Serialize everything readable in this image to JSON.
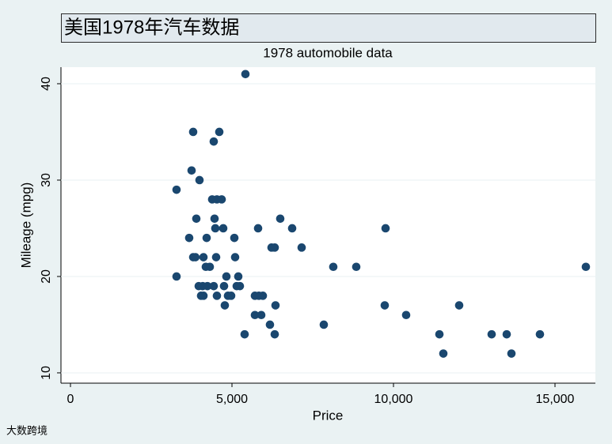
{
  "header": {
    "title": "美国1978年汽车数据"
  },
  "watermark": "大数跨境",
  "chart_data": {
    "type": "scatter",
    "title": "1978 automobile data",
    "x_label": "Price",
    "y_label": "Mileage (mpg)",
    "color": "#1a476f",
    "grid": true,
    "xlim": [
      -294,
      16250
    ],
    "ylim": [
      8.93,
      41.72
    ],
    "xticks": [
      0,
      {
        "value": 5000,
        "label": "5,000"
      },
      {
        "value": 10000,
        "label": "10,000"
      },
      {
        "value": 15000,
        "label": "15,000"
      }
    ],
    "yticks": [
      10,
      20,
      30,
      40
    ],
    "series": [
      {
        "name": "Mileage (mpg)",
        "color": "#1a476f",
        "x": [
          5417,
          3799,
          4608,
          4436,
          3750,
          3284,
          3995,
          4387,
          4534,
          4681,
          3897,
          4461,
          6495,
          3676,
          4216,
          5074,
          4485,
          4730,
          5809,
          6863,
          9755,
          3800,
          3870,
          4118,
          4510,
          5098,
          6225,
          6324,
          7157,
          8137,
          8848,
          15956,
          4191,
          4314,
          3284,
          4828,
          5196,
          3971,
          4093,
          4240,
          4436,
          4755,
          5147,
          5245,
          4044,
          4118,
          4534,
          4877,
          4975,
          5711,
          5833,
          5956,
          4779,
          6348,
          9730,
          12034,
          5711,
          5907,
          10392,
          6176,
          7843,
          5392,
          6324,
          11422,
          13039,
          13505,
          14534,
          11544,
          13652
        ],
        "values": [
          41,
          35,
          35,
          34,
          31,
          29,
          30,
          28,
          28,
          28,
          26,
          26,
          26,
          24,
          24,
          24,
          25,
          25,
          25,
          25,
          25,
          22,
          22,
          22,
          22,
          22,
          23,
          23,
          23,
          21,
          21,
          21,
          21,
          21,
          20,
          20,
          20,
          19,
          19,
          19,
          19,
          19,
          19,
          19,
          18,
          18,
          18,
          18,
          18,
          18,
          18,
          18,
          17,
          17,
          17,
          17,
          16,
          16,
          16,
          15,
          15,
          14,
          14,
          14,
          14,
          14,
          14,
          12,
          12
        ]
      }
    ]
  }
}
